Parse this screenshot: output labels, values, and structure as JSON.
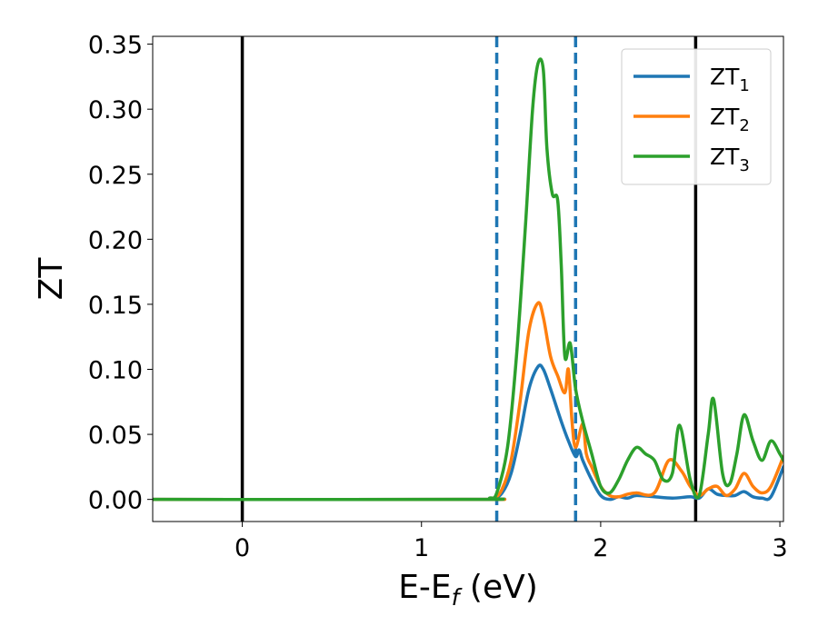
{
  "chart_data": {
    "type": "line",
    "xlabel": "E-E",
    "xlabel_sub": "f",
    "xlabel_unit": " (eV)",
    "ylabel": "ZT",
    "xlim": [
      -0.5,
      3.02
    ],
    "ylim": [
      -0.017,
      0.356
    ],
    "xticks": [
      0,
      1,
      2,
      3
    ],
    "yticks": [
      0.0,
      0.05,
      0.1,
      0.15,
      0.2,
      0.25,
      0.3,
      0.35
    ],
    "ytick_labels": [
      "0.00",
      "0.05",
      "0.10",
      "0.15",
      "0.20",
      "0.25",
      "0.30",
      "0.35"
    ],
    "grid": false,
    "legend_position": "top-right",
    "vertical_lines": [
      {
        "x": 0.0,
        "style": "solid",
        "color": "#000000"
      },
      {
        "x": 2.53,
        "style": "solid",
        "color": "#000000"
      },
      {
        "x": 1.42,
        "style": "dashed",
        "color": "#1f77b4"
      },
      {
        "x": 1.86,
        "style": "dashed",
        "color": "#1f77b4"
      }
    ],
    "series": [
      {
        "name": "ZT",
        "name_sub": "1",
        "color": "#1f77b4",
        "x": [
          -0.5,
          1.3,
          1.4,
          1.45,
          1.5,
          1.55,
          1.6,
          1.65,
          1.68,
          1.72,
          1.78,
          1.82,
          1.86,
          1.88,
          1.9,
          1.95,
          2.0,
          2.05,
          2.1,
          2.15,
          2.2,
          2.3,
          2.4,
          2.5,
          2.55,
          2.6,
          2.65,
          2.7,
          2.75,
          2.8,
          2.85,
          2.9,
          2.95,
          3.02
        ],
        "y": [
          0.0,
          0.0,
          0.001,
          0.005,
          0.02,
          0.05,
          0.085,
          0.102,
          0.1,
          0.085,
          0.06,
          0.045,
          0.033,
          0.038,
          0.03,
          0.015,
          0.003,
          0.0,
          0.002,
          0.001,
          0.003,
          0.002,
          0.001,
          0.002,
          0.001,
          0.008,
          0.004,
          0.003,
          0.003,
          0.006,
          0.002,
          0.001,
          0.002,
          0.025
        ]
      },
      {
        "name": "ZT",
        "name_sub": "2",
        "color": "#ff7f0e",
        "x": [
          -0.5,
          1.3,
          1.4,
          1.45,
          1.5,
          1.55,
          1.6,
          1.65,
          1.68,
          1.72,
          1.76,
          1.8,
          1.82,
          1.84,
          1.86,
          1.9,
          1.92,
          1.95,
          2.0,
          2.05,
          2.1,
          2.15,
          2.2,
          2.3,
          2.38,
          2.45,
          2.5,
          2.55,
          2.6,
          2.65,
          2.7,
          2.75,
          2.8,
          2.85,
          2.9,
          2.95,
          3.02
        ],
        "y": [
          0.0,
          0.0,
          0.001,
          0.008,
          0.03,
          0.075,
          0.13,
          0.151,
          0.14,
          0.11,
          0.095,
          0.082,
          0.1,
          0.06,
          0.04,
          0.058,
          0.035,
          0.025,
          0.01,
          0.003,
          0.002,
          0.004,
          0.005,
          0.005,
          0.03,
          0.022,
          0.01,
          0.003,
          0.008,
          0.01,
          0.003,
          0.008,
          0.02,
          0.01,
          0.005,
          0.01,
          0.033
        ]
      },
      {
        "name": "ZT",
        "name_sub": "3",
        "color": "#2ca02c",
        "x": [
          -0.5,
          1.3,
          1.38,
          1.42,
          1.48,
          1.53,
          1.58,
          1.62,
          1.65,
          1.68,
          1.7,
          1.73,
          1.76,
          1.78,
          1.8,
          1.83,
          1.86,
          1.9,
          1.95,
          2.0,
          2.05,
          2.1,
          2.15,
          2.2,
          2.25,
          2.3,
          2.35,
          2.4,
          2.44,
          2.5,
          2.55,
          2.6,
          2.63,
          2.68,
          2.72,
          2.76,
          2.8,
          2.85,
          2.9,
          2.95,
          3.0,
          3.02
        ],
        "y": [
          0.0,
          0.0,
          0.001,
          0.005,
          0.04,
          0.11,
          0.21,
          0.3,
          0.335,
          0.33,
          0.27,
          0.235,
          0.23,
          0.18,
          0.11,
          0.12,
          0.085,
          0.06,
          0.035,
          0.01,
          0.005,
          0.015,
          0.03,
          0.04,
          0.035,
          0.03,
          0.015,
          0.02,
          0.057,
          0.015,
          0.003,
          0.05,
          0.077,
          0.02,
          0.012,
          0.035,
          0.065,
          0.045,
          0.03,
          0.045,
          0.035,
          0.03
        ]
      }
    ]
  }
}
